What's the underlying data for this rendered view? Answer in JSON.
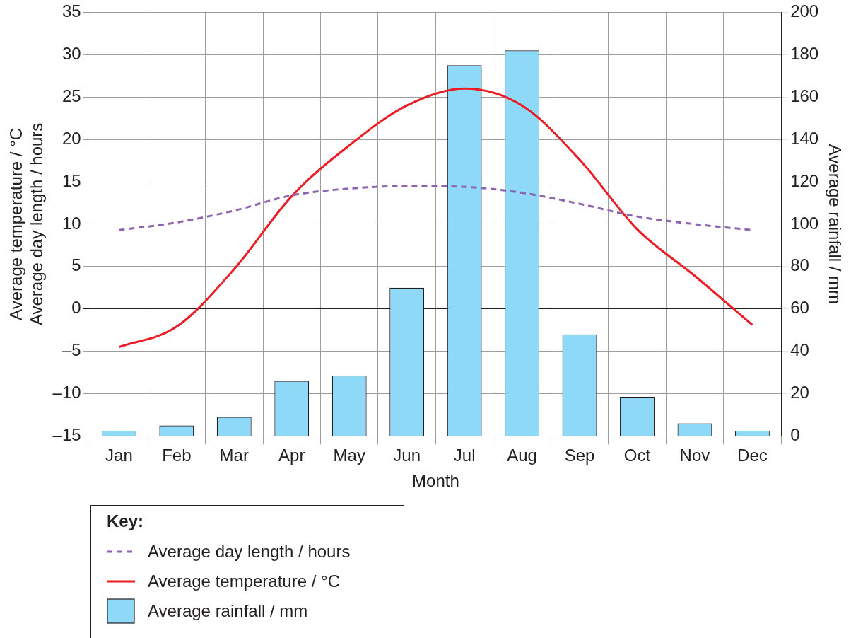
{
  "chart_data": {
    "type": "bar",
    "categories": [
      "Jan",
      "Feb",
      "Mar",
      "Apr",
      "May",
      "Jun",
      "Jul",
      "Aug",
      "Sep",
      "Oct",
      "Nov",
      "Dec"
    ],
    "xlabel": "Month",
    "ylabel": "Average temperature / °C\nAverage day length / hours",
    "y2label": "Average rainfall / mm",
    "legend_title": "Key:",
    "series": [
      {
        "name": "Average day length / hours",
        "type": "line",
        "line_style": "dashed",
        "color": "#8e63b0",
        "values": [
          9.3,
          10.2,
          11.6,
          13.4,
          14.2,
          14.5,
          14.4,
          13.7,
          12.4,
          10.9,
          10.0,
          9.3
        ]
      },
      {
        "name": "Average temperature / °C",
        "type": "line",
        "line_style": "solid",
        "color": "#ed1c24",
        "values": [
          -4.5,
          -2.1,
          4.7,
          13.3,
          19.3,
          24,
          26,
          24,
          17.6,
          9.4,
          3.9,
          -1.9
        ]
      },
      {
        "name": "Average rainfall / mm",
        "axis": "y2",
        "color": "#8ed8f8",
        "values": [
          2.5,
          5,
          9,
          26,
          28.5,
          70,
          175,
          182,
          48,
          18.5,
          6,
          2.5
        ]
      }
    ],
    "ylim": [
      -15,
      35
    ],
    "yticks": [
      {
        "value": -15,
        "label": "–15"
      },
      {
        "value": -10,
        "label": "–10"
      },
      {
        "value": -5,
        "label": "–5"
      },
      0,
      5,
      10,
      15,
      20,
      25,
      30,
      35
    ],
    "y2lim": [
      0,
      200
    ],
    "y2ticks": [
      0,
      20,
      40,
      60,
      80,
      100,
      120,
      140,
      160,
      180,
      200
    ],
    "grid": true,
    "marker": "none",
    "legend": "bottom left"
  }
}
